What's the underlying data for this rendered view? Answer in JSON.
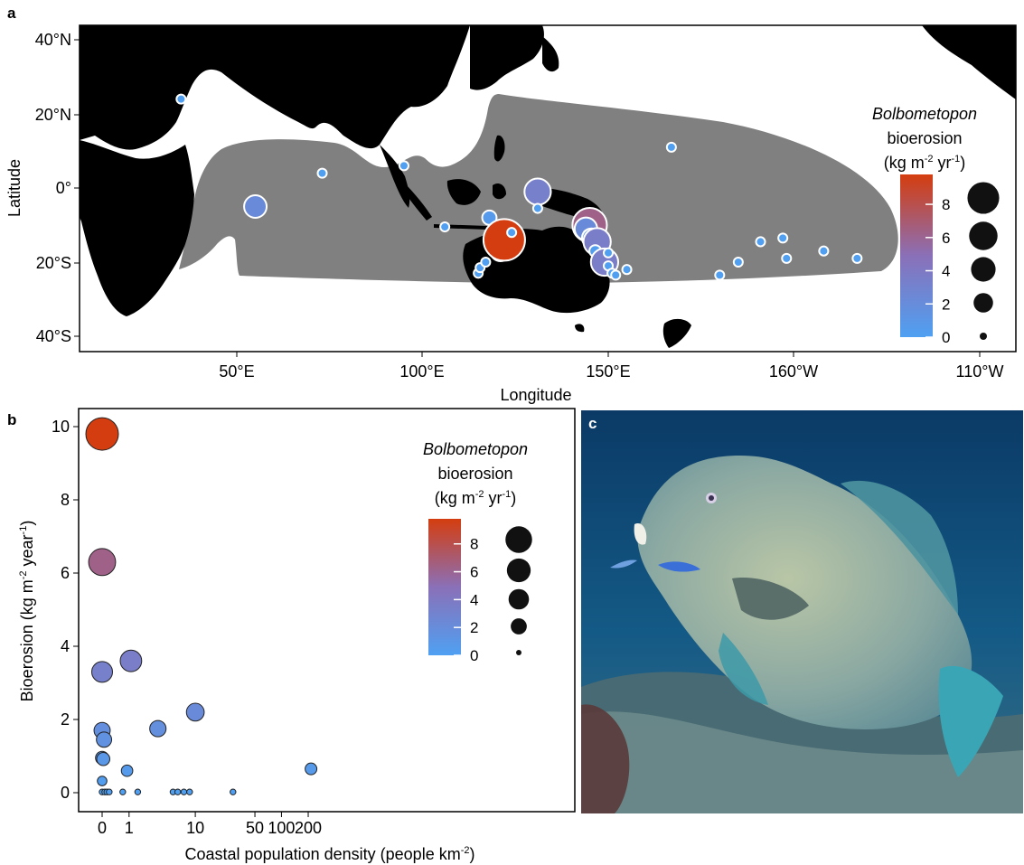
{
  "panels": {
    "a": "a",
    "b": "b",
    "c": "c"
  },
  "map": {
    "xlabel": "Longitude",
    "ylabel": "Latitude",
    "lon_ticks": [
      "50°E",
      "100°E",
      "150°E",
      "160°W",
      "110°W"
    ],
    "lat_ticks": [
      "40°N",
      "20°N",
      "0°",
      "20°S",
      "40°S"
    ],
    "colors": {
      "land": "#000000",
      "range": "#808080",
      "ocean": "#ffffff"
    }
  },
  "legend": {
    "title_species": "Bolbometopon",
    "title_line2": "bioerosion",
    "title_units_pre": "(kg m",
    "title_units_exp1": "-2",
    "title_units_mid": " yr",
    "title_units_exp2": "-1",
    "title_units_post": ")",
    "color_ticks": [
      "8",
      "6",
      "4",
      "2",
      "0"
    ],
    "size_values": [
      8,
      6,
      4,
      2,
      0
    ],
    "color_low": "#4fa0f2",
    "color_mid": "#8a70b8",
    "color_high": "#d43d0f"
  },
  "chart_data": [
    {
      "panel": "a",
      "type": "scatter",
      "xlabel": "Longitude",
      "ylabel": "Latitude",
      "x_ticks": [
        "50°E",
        "100°E",
        "150°E",
        "160°W",
        "110°W"
      ],
      "y_ticks": [
        "40°N",
        "20°N",
        "0°",
        "20°S",
        "40°S"
      ],
      "points": [
        {
          "lon": 35,
          "lat": 24,
          "v": 0.1
        },
        {
          "lon": 55,
          "lat": -5,
          "v": 2.2
        },
        {
          "lon": 73,
          "lat": 4,
          "v": 0.1
        },
        {
          "lon": 95,
          "lat": 6,
          "v": 0.1
        },
        {
          "lon": 106,
          "lat": -10.5,
          "v": 0.1
        },
        {
          "lon": 115,
          "lat": -23,
          "v": 0.1
        },
        {
          "lon": 115.5,
          "lat": -21.5,
          "v": 0.1
        },
        {
          "lon": 117,
          "lat": -20,
          "v": 0.1
        },
        {
          "lon": 118,
          "lat": -8,
          "v": 0.6
        },
        {
          "lon": 121,
          "lat": -17,
          "v": 1.7
        },
        {
          "lon": 122,
          "lat": -14,
          "v": 9.8
        },
        {
          "lon": 124,
          "lat": -12,
          "v": 0.1
        },
        {
          "lon": 131,
          "lat": -1,
          "v": 3.3
        },
        {
          "lon": 131,
          "lat": -5.5,
          "v": 0.1
        },
        {
          "lon": 145,
          "lat": -10,
          "v": 6.3
        },
        {
          "lon": 144,
          "lat": -11,
          "v": 2.2
        },
        {
          "lon": 144.5,
          "lat": -12.5,
          "v": 0.1
        },
        {
          "lon": 145.5,
          "lat": -13.5,
          "v": 1.4
        },
        {
          "lon": 147,
          "lat": -14.5,
          "v": 3.6
        },
        {
          "lon": 146.5,
          "lat": -17,
          "v": 0.3
        },
        {
          "lon": 149,
          "lat": -20,
          "v": 3.6
        },
        {
          "lon": 150,
          "lat": -17.5,
          "v": 0.1
        },
        {
          "lon": 150,
          "lat": -21,
          "v": 0.1
        },
        {
          "lon": 151,
          "lat": -23,
          "v": 0.1
        },
        {
          "lon": 152,
          "lat": -23.5,
          "v": 0.1
        },
        {
          "lon": 155,
          "lat": -22,
          "v": 0.1
        },
        {
          "lon": 167,
          "lat": 11,
          "v": 0.1
        },
        {
          "lon": 180,
          "lat": -23.5,
          "v": 0.1
        },
        {
          "lon": 185,
          "lat": -20,
          "v": 0.1
        },
        {
          "lon": 191,
          "lat": -14.5,
          "v": 0.1
        },
        {
          "lon": 197,
          "lat": -13.5,
          "v": 0.1
        },
        {
          "lon": 198,
          "lat": -19,
          "v": 0.1
        },
        {
          "lon": 208,
          "lat": -17,
          "v": 0.1
        },
        {
          "lon": 217,
          "lat": -19,
          "v": 0.1
        }
      ]
    },
    {
      "panel": "b",
      "type": "scatter",
      "xlabel_pre": "Coastal population density (people km",
      "xlabel_exp": "-2",
      "xlabel_post": ")",
      "ylabel_pre": "Bioerosion (kg m",
      "ylabel_exp1": "-2",
      "ylabel_mid": " year",
      "ylabel_exp2": "-1",
      "ylabel_post": ")",
      "x_scale": "pseudo-log",
      "x_ticks": [
        0,
        1,
        10,
        50,
        100,
        200
      ],
      "y_ticks": [
        0,
        2,
        4,
        6,
        8,
        10
      ],
      "ylim": [
        0,
        10.2
      ],
      "points": [
        {
          "x": 0,
          "y": 9.8
        },
        {
          "x": 0,
          "y": 6.3
        },
        {
          "x": 0,
          "y": 3.3
        },
        {
          "x": 1.1,
          "y": 3.6
        },
        {
          "x": 0,
          "y": 1.7
        },
        {
          "x": 0.05,
          "y": 1.45
        },
        {
          "x": 0,
          "y": 0.95
        },
        {
          "x": 0.03,
          "y": 0.92
        },
        {
          "x": 0,
          "y": 0.32
        },
        {
          "x": 0.9,
          "y": 0.6
        },
        {
          "x": 3.2,
          "y": 1.75
        },
        {
          "x": 10,
          "y": 2.2
        },
        {
          "x": 215,
          "y": 0.65
        },
        {
          "x": 0,
          "y": 0.02
        },
        {
          "x": 0.07,
          "y": 0.02
        },
        {
          "x": 0.13,
          "y": 0.02
        },
        {
          "x": 0.2,
          "y": 0.02
        },
        {
          "x": 0.7,
          "y": 0.02
        },
        {
          "x": 1.5,
          "y": 0.02
        },
        {
          "x": 5.2,
          "y": 0.02
        },
        {
          "x": 6.0,
          "y": 0.02
        },
        {
          "x": 7.2,
          "y": 0.02
        },
        {
          "x": 8.5,
          "y": 0.02
        },
        {
          "x": 28,
          "y": 0.02
        }
      ]
    }
  ]
}
